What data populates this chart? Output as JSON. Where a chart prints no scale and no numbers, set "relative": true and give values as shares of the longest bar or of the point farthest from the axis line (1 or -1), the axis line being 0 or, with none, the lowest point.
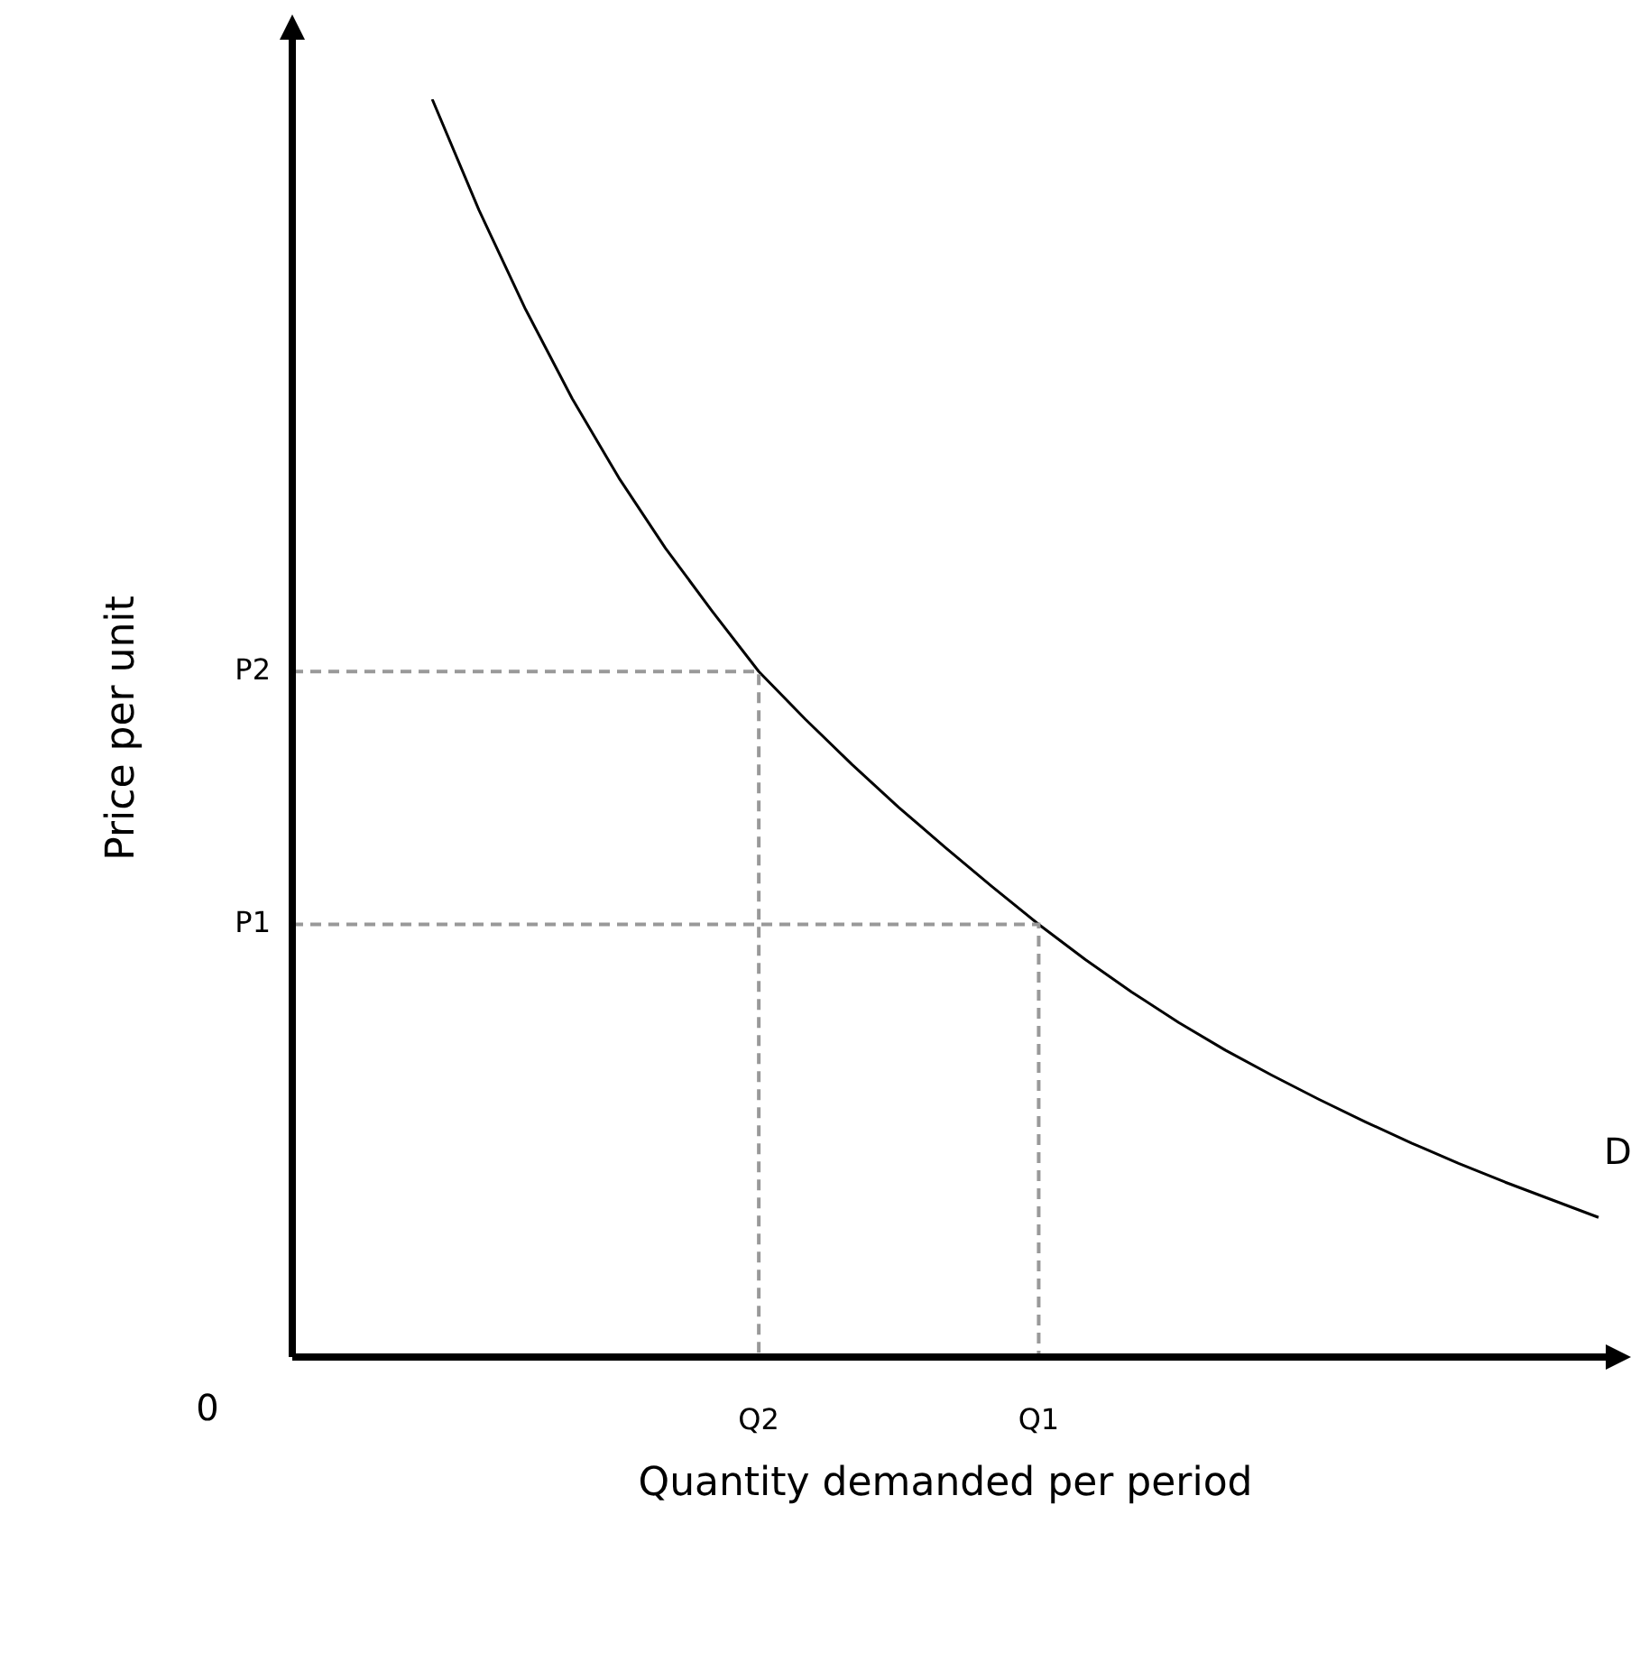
{
  "chart_data": {
    "type": "line",
    "relative": true,
    "marker": "none",
    "xlabel": "Quantity demanded per period",
    "ylabel": "Price per unit",
    "categories": [
      null,
      null,
      null,
      null,
      null,
      null,
      null,
      null,
      null,
      null,
      "Q2",
      null,
      null,
      null,
      null,
      null,
      "Q1",
      null,
      null,
      null,
      null,
      null,
      null,
      null,
      null,
      null,
      null,
      null,
      null
    ],
    "series": [
      {
        "name": "D",
        "color": "#000000",
        "values": [
          null,
          null,
          null,
          1,
          0.912,
          0.833,
          0.762,
          0.699,
          0.643,
          0.593,
          0.545,
          0.507,
          0.471,
          0.437,
          0.405,
          0.374,
          0.344,
          0.316,
          0.29,
          0.266,
          0.244,
          0.224,
          0.205,
          0.187,
          0.17,
          0.154,
          0.139,
          0.125,
          0.111
        ]
      }
    ],
    "ref_lines": [
      {
        "axis": "y",
        "value": 0.545,
        "label": "P2",
        "color": "#999999",
        "line_style": "dashed"
      },
      {
        "axis": "y",
        "value": 0.344,
        "label": "P1",
        "color": "#999999",
        "line_style": "dashed"
      }
    ],
    "annotations": [
      "0"
    ]
  }
}
